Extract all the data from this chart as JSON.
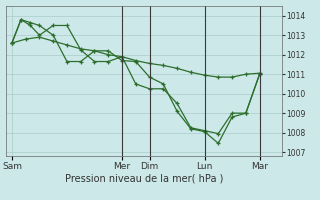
{
  "background_color": "#cce8e8",
  "grid_color": "#aacccc",
  "line_color": "#2d6e2d",
  "vline_color": "#3a3a3a",
  "title": "Pression niveau de la mer( hPa )",
  "ylim": [
    1006.8,
    1014.5
  ],
  "yticks": [
    1007,
    1008,
    1009,
    1010,
    1011,
    1012,
    1013,
    1014
  ],
  "x_day_labels": [
    "Sam",
    "Mer",
    "Dim",
    "Lun",
    "Mar"
  ],
  "x_day_positions": [
    0.0,
    4.0,
    5.0,
    7.0,
    9.0
  ],
  "xlim": [
    -0.2,
    9.8
  ],
  "vline_positions": [
    4.0,
    5.0,
    7.0,
    9.0
  ],
  "series1_x": [
    0.0,
    0.33,
    0.67,
    1.0,
    1.5,
    2.0,
    2.5,
    3.0,
    3.5,
    4.0,
    4.5,
    5.0,
    5.5,
    6.0,
    6.5,
    7.0,
    7.5,
    8.0,
    8.5,
    9.0
  ],
  "series1_y": [
    1012.6,
    1013.8,
    1013.65,
    1013.5,
    1013.0,
    1011.65,
    1011.65,
    1012.2,
    1012.2,
    1011.7,
    1011.65,
    1010.85,
    1010.5,
    1009.1,
    1008.2,
    1008.05,
    1007.45,
    1008.8,
    1009.0,
    1011.0
  ],
  "series2_x": [
    0.0,
    0.33,
    0.67,
    1.0,
    1.5,
    2.0,
    2.5,
    3.0,
    3.5,
    4.0,
    4.5,
    5.0,
    5.5,
    6.0,
    6.5,
    7.0,
    7.5,
    8.0,
    8.5,
    9.0
  ],
  "series2_y": [
    1012.6,
    1013.8,
    1013.5,
    1013.0,
    1013.5,
    1013.5,
    1012.25,
    1011.65,
    1011.65,
    1011.9,
    1010.5,
    1010.25,
    1010.25,
    1009.5,
    1008.25,
    1008.1,
    1007.95,
    1009.0,
    1009.0,
    1011.0
  ],
  "series3_x": [
    0.0,
    0.5,
    1.0,
    1.5,
    2.0,
    2.5,
    3.0,
    3.5,
    4.0,
    4.5,
    5.0,
    5.5,
    6.0,
    6.5,
    7.0,
    7.5,
    8.0,
    8.5,
    9.0
  ],
  "series3_y": [
    1012.6,
    1012.8,
    1012.9,
    1012.7,
    1012.5,
    1012.3,
    1012.2,
    1012.0,
    1011.9,
    1011.7,
    1011.55,
    1011.45,
    1011.3,
    1011.1,
    1010.95,
    1010.85,
    1010.85,
    1011.0,
    1011.05
  ]
}
